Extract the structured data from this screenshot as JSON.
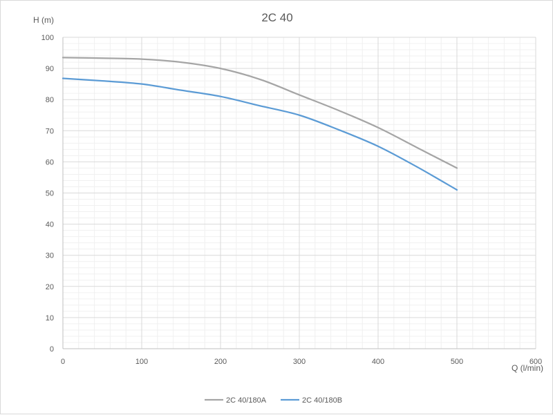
{
  "chart_data": {
    "type": "line",
    "title": "2C 40",
    "xlabel": "Q (l/min)",
    "ylabel": "H (m)",
    "xlim": [
      0,
      600
    ],
    "ylim": [
      0,
      100
    ],
    "xticks": [
      "0",
      "100",
      "200",
      "300",
      "400",
      "500",
      "600"
    ],
    "yticks": [
      "0",
      "10",
      "20",
      "30",
      "40",
      "50",
      "60",
      "70",
      "80",
      "90",
      "100"
    ],
    "grid": true,
    "legend_position": "bottom",
    "series": [
      {
        "name": "2C 40/180A",
        "color": "#a5a5a5",
        "x": [
          0,
          50,
          100,
          150,
          200,
          250,
          300,
          350,
          400,
          450,
          500
        ],
        "y": [
          93.5,
          93.3,
          93.0,
          92.0,
          90.0,
          86.5,
          81.5,
          76.5,
          71.0,
          64.5,
          58.0
        ]
      },
      {
        "name": "2C 40/180B",
        "color": "#5b9bd5",
        "x": [
          0,
          50,
          100,
          150,
          200,
          250,
          300,
          350,
          400,
          450,
          500
        ],
        "y": [
          86.8,
          86.0,
          85.0,
          83.0,
          81.0,
          78.0,
          75.0,
          70.3,
          65.0,
          58.3,
          51.0
        ]
      }
    ]
  }
}
